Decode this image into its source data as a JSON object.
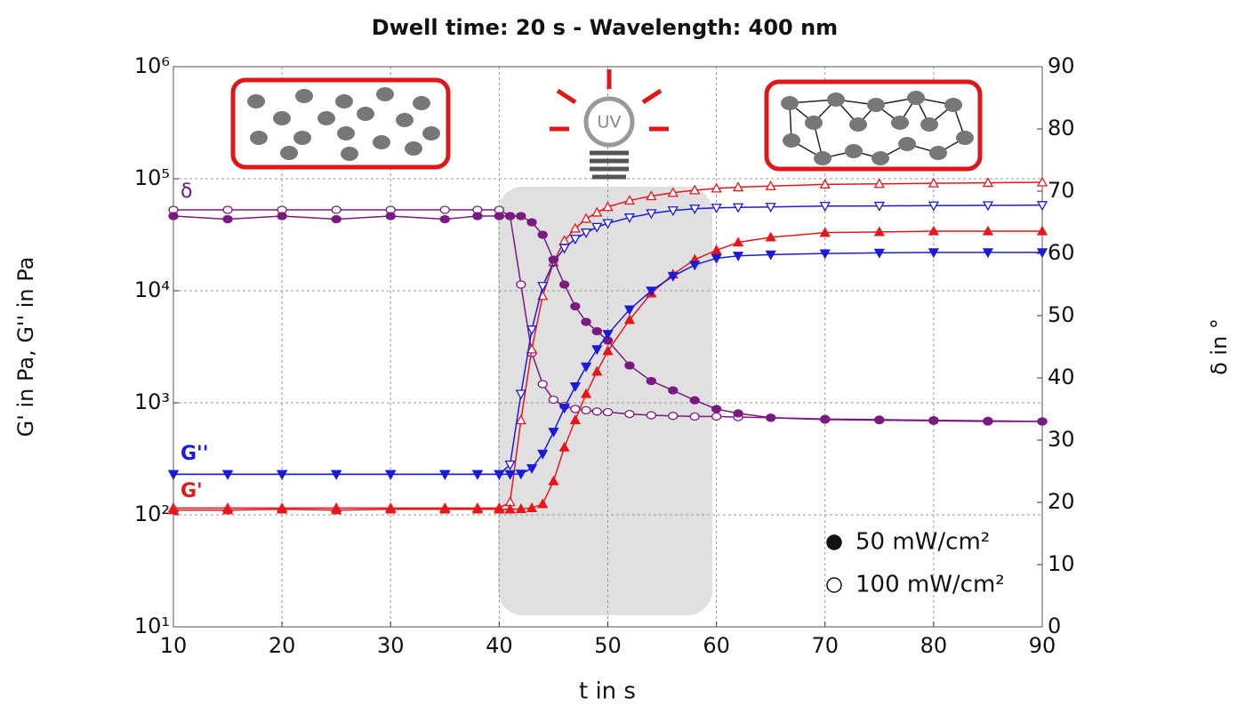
{
  "chart_data": {
    "type": "line",
    "title": "Dwell time: 20 s - Wavelength: 400 nm",
    "x_label": "t in s",
    "y_label": "G' in Pa, G'' in Pa",
    "y2_label": "δ in °",
    "annotations": [
      "δ",
      "G''",
      "G'"
    ],
    "icon_text": "UV",
    "log_y": true,
    "grid": true,
    "xlim": [
      10,
      90
    ],
    "xticks": [
      10,
      20,
      30,
      40,
      50,
      60,
      70,
      80,
      90
    ],
    "ylim": [
      10,
      1000000
    ],
    "yticks": [
      {
        "value": 10,
        "label": "10¹"
      },
      {
        "value": 100,
        "label": "10²"
      },
      {
        "value": 1000,
        "label": "10³"
      },
      {
        "value": 10000,
        "label": "10⁴"
      },
      {
        "value": 100000,
        "label": "10⁵"
      },
      {
        "value": 1000000,
        "label": "10⁶"
      }
    ],
    "y2lim": [
      0,
      90
    ],
    "y2ticks": [
      0,
      10,
      20,
      30,
      40,
      50,
      60,
      70,
      80,
      90
    ],
    "legend": [
      {
        "label": "50 mW/cm²",
        "style": "filled"
      },
      {
        "label": "100 mW/cm²",
        "style": "open"
      }
    ],
    "x": [
      10,
      15,
      20,
      25,
      30,
      35,
      38,
      40,
      41,
      42,
      43,
      44,
      45,
      46,
      47,
      48,
      49,
      50,
      52,
      54,
      56,
      58,
      60,
      62,
      65,
      70,
      75,
      80,
      85,
      90
    ],
    "series": [
      {
        "color": "#7a1a80",
        "style": "open",
        "marker": "circle",
        "axis": "y2",
        "values": [
          67,
          67,
          67,
          67,
          67,
          67,
          67,
          67,
          66,
          55,
          44,
          39,
          36.5,
          35.5,
          35,
          34.8,
          34.6,
          34.5,
          34.2,
          34,
          33.9,
          33.8,
          33.8,
          33.7,
          33.6,
          33.4,
          33.3,
          33.2,
          33.1,
          33
        ]
      },
      {
        "color": "#e8161b",
        "style": "open",
        "marker": "triangle-up",
        "values": [
          115,
          115,
          115,
          115,
          115,
          115,
          115,
          115,
          130,
          700,
          3000,
          9000,
          18000,
          28000,
          36000,
          44000,
          50000,
          56000,
          64000,
          70000,
          75000,
          79000,
          82000,
          84000,
          86000,
          89000,
          90000,
          91000,
          92000,
          93000
        ]
      },
      {
        "color": "#1a1adb",
        "style": "open",
        "marker": "triangle-down",
        "values": [
          230,
          230,
          230,
          230,
          230,
          230,
          230,
          230,
          280,
          1200,
          4500,
          11000,
          18000,
          24000,
          29000,
          33000,
          37000,
          40000,
          45000,
          49000,
          52000,
          54000,
          55000,
          55500,
          56000,
          57000,
          57200,
          57500,
          57800,
          58000
        ]
      },
      {
        "color": "#7a1a80",
        "style": "filled",
        "marker": "circle",
        "axis": "y2",
        "values": [
          66,
          65.5,
          66,
          65.5,
          66,
          65.5,
          66,
          66,
          66,
          66,
          65,
          63,
          59,
          55,
          51.5,
          49,
          47.5,
          46,
          42,
          39.5,
          38,
          36.4,
          35,
          34.3,
          33.6,
          33.3,
          33.2,
          33.1,
          33,
          33
        ]
      },
      {
        "color": "#e8161b",
        "style": "filled",
        "marker": "triangle-up",
        "values": [
          110,
          110,
          112,
          110,
          112,
          112,
          112,
          112,
          112,
          113,
          115,
          125,
          200,
          400,
          700,
          1200,
          1900,
          2900,
          5500,
          9500,
          14000,
          19000,
          23000,
          27000,
          30000,
          33000,
          33500,
          34000,
          34000,
          34000
        ]
      },
      {
        "color": "#1a1adb",
        "style": "filled",
        "marker": "triangle-down",
        "values": [
          230,
          230,
          230,
          230,
          230,
          230,
          230,
          230,
          230,
          232,
          260,
          350,
          550,
          900,
          1400,
          2100,
          3000,
          4100,
          6800,
          10000,
          13500,
          17000,
          19500,
          20500,
          21000,
          21500,
          21800,
          22000,
          22000,
          22000
        ]
      }
    ]
  }
}
